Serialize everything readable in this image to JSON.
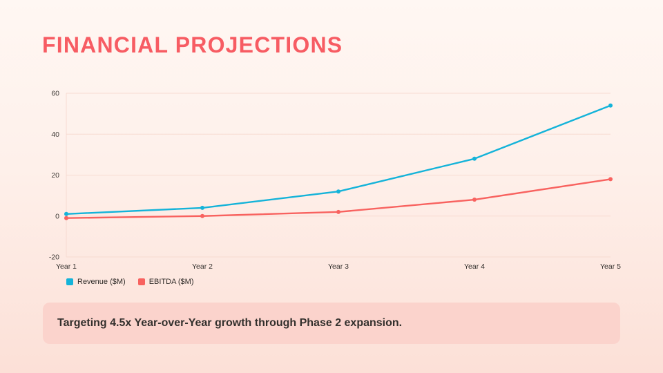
{
  "slide": {
    "title": "FINANCIAL PROJECTIONS",
    "callout": "Targeting 4.5x Year-over-Year growth through Phase 2 expansion."
  },
  "colors": {
    "background_top": "#FFF7F3",
    "background_bottom": "#FCE0D7",
    "title": "#F75C63",
    "revenue_line": "#14B3D9",
    "ebitda_line": "#F8625F",
    "gridline": "#F7D9D0",
    "tick_label": "#3D3935",
    "callout_bg": "#FBD3CC",
    "callout_text": "#33302D"
  },
  "chart_data": {
    "type": "line",
    "categories": [
      "Year 1",
      "Year 2",
      "Year 3",
      "Year 4",
      "Year 5"
    ],
    "series": [
      {
        "name": "Revenue ($M)",
        "color": "#14B3D9",
        "values": [
          1,
          4,
          12,
          28,
          54
        ]
      },
      {
        "name": "EBITDA ($M)",
        "color": "#F8625F",
        "values": [
          -1,
          0,
          2,
          8,
          18
        ]
      }
    ],
    "title": "",
    "xlabel": "",
    "ylabel": "",
    "ylim": [
      -20,
      60
    ],
    "yticks": [
      -20,
      0,
      20,
      40,
      60
    ],
    "grid": true,
    "legend_position": "bottom-left",
    "marker": "circle"
  }
}
